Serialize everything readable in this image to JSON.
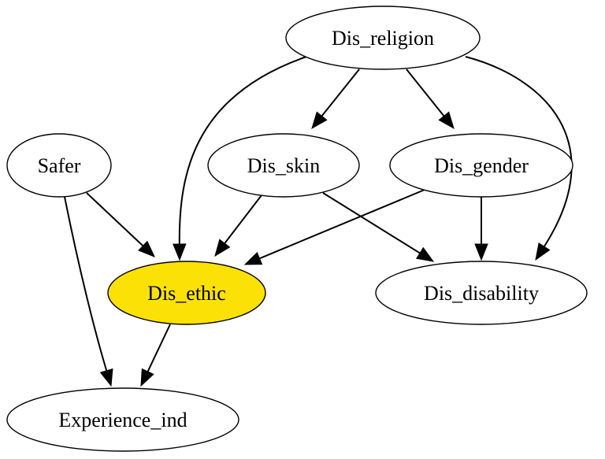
{
  "graph": {
    "nodes": [
      {
        "id": "dis_religion",
        "label": "Dis_religion",
        "fill": "#ffffff"
      },
      {
        "id": "safer",
        "label": "Safer",
        "fill": "#ffffff"
      },
      {
        "id": "dis_skin",
        "label": "Dis_skin",
        "fill": "#ffffff"
      },
      {
        "id": "dis_gender",
        "label": "Dis_gender",
        "fill": "#ffffff"
      },
      {
        "id": "dis_ethic",
        "label": "Dis_ethic",
        "fill": "#fbe106"
      },
      {
        "id": "dis_disability",
        "label": "Dis_disability",
        "fill": "#ffffff"
      },
      {
        "id": "experience_ind",
        "label": "Experience_ind",
        "fill": "#ffffff"
      }
    ],
    "edges": [
      {
        "from": "dis_religion",
        "to": "dis_ethic"
      },
      {
        "from": "dis_religion",
        "to": "dis_skin"
      },
      {
        "from": "dis_religion",
        "to": "dis_gender"
      },
      {
        "from": "dis_religion",
        "to": "dis_disability"
      },
      {
        "from": "safer",
        "to": "dis_ethic"
      },
      {
        "from": "safer",
        "to": "experience_ind"
      },
      {
        "from": "dis_skin",
        "to": "dis_ethic"
      },
      {
        "from": "dis_skin",
        "to": "dis_disability"
      },
      {
        "from": "dis_gender",
        "to": "dis_ethic"
      },
      {
        "from": "dis_gender",
        "to": "dis_disability"
      },
      {
        "from": "dis_ethic",
        "to": "experience_ind"
      }
    ]
  }
}
